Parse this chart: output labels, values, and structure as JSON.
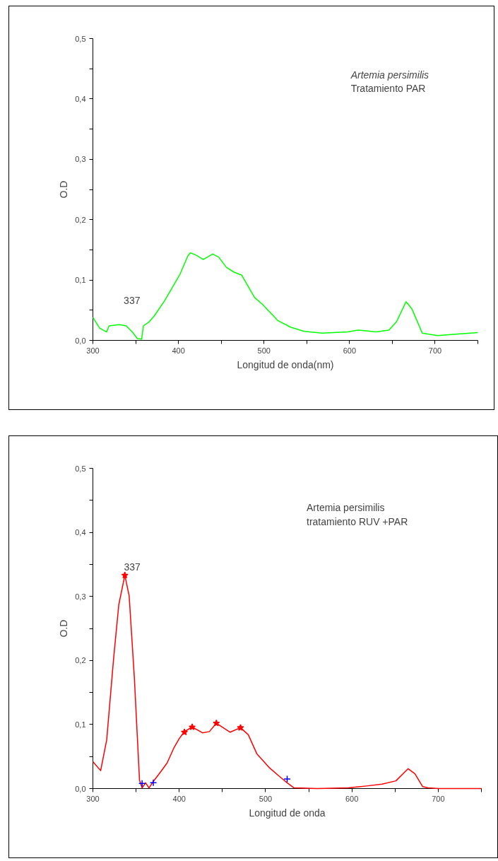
{
  "chart_data": [
    {
      "type": "line",
      "xlabel": "Longitud de onda(nm)",
      "ylabel": "O.D",
      "annotations": [
        "Artemia persimilis",
        "Tratamiento PAR",
        "337"
      ],
      "xlim": [
        300,
        750
      ],
      "ylim": [
        0,
        0.5
      ],
      "xticks": [
        300,
        {
          "value": 350,
          "label": null
        },
        400,
        {
          "value": 450,
          "label": null
        },
        500,
        {
          "value": 550,
          "label": null
        },
        600,
        {
          "value": 650,
          "label": null
        },
        700,
        {
          "value": 750,
          "label": null
        }
      ],
      "yticks": [
        {
          "value": 0,
          "label": "0,0"
        },
        {
          "value": 0.05,
          "label": null
        },
        {
          "value": 0.1,
          "label": "0,1"
        },
        {
          "value": 0.15,
          "label": null
        },
        {
          "value": 0.2,
          "label": "0,2"
        },
        {
          "value": 0.25,
          "label": null
        },
        {
          "value": 0.3,
          "label": "0,3"
        },
        {
          "value": 0.35,
          "label": null
        },
        {
          "value": 0.4,
          "label": "0,4"
        },
        {
          "value": 0.45,
          "label": null
        },
        {
          "value": 0.5,
          "label": "0,5"
        }
      ],
      "grid": false,
      "series": [
        {
          "color": "#00ff00",
          "x": [
            300,
            308,
            316,
            319,
            331,
            339,
            346,
            352,
            357,
            359,
            366,
            372,
            384,
            402,
            411,
            414,
            421,
            429,
            440,
            447,
            456,
            465,
            474,
            489,
            498,
            516,
            531,
            547,
            568,
            598,
            610,
            631,
            646,
            655,
            666,
            673,
            685,
            703,
            721,
            750
          ],
          "values": [
            0.038,
            0.02,
            0.014,
            0.024,
            0.026,
            0.024,
            0.014,
            0.003,
            0.002,
            0.024,
            0.031,
            0.041,
            0.066,
            0.11,
            0.14,
            0.145,
            0.141,
            0.134,
            0.143,
            0.138,
            0.121,
            0.113,
            0.108,
            0.071,
            0.06,
            0.033,
            0.022,
            0.015,
            0.012,
            0.014,
            0.017,
            0.014,
            0.017,
            0.031,
            0.064,
            0.052,
            0.012,
            0.008,
            0.01,
            0.013
          ]
        }
      ]
    },
    {
      "type": "line",
      "xlabel": "Longitud de onda",
      "ylabel": "O.D",
      "annotations": [
        "Artemia persimilis",
        "tratamiento RUV +PAR",
        "337"
      ],
      "xlim": [
        300,
        750
      ],
      "ylim": [
        0,
        0.5
      ],
      "xticks": [
        300,
        {
          "value": 350,
          "label": null
        },
        400,
        {
          "value": 450,
          "label": null
        },
        500,
        {
          "value": 550,
          "label": null
        },
        600,
        {
          "value": 650,
          "label": null
        },
        700,
        {
          "value": 750,
          "label": null
        }
      ],
      "yticks": [
        {
          "value": 0,
          "label": "0,0"
        },
        {
          "value": 0.05,
          "label": null
        },
        {
          "value": 0.1,
          "label": "0,1"
        },
        {
          "value": 0.15,
          "label": null
        },
        {
          "value": 0.2,
          "label": "0,2"
        },
        {
          "value": 0.25,
          "label": null
        },
        {
          "value": 0.3,
          "label": "0,3"
        },
        {
          "value": 0.35,
          "label": null
        },
        {
          "value": 0.4,
          "label": "0,4"
        },
        {
          "value": 0.45,
          "label": null
        },
        {
          "value": 0.5,
          "label": "0,5"
        }
      ],
      "grid": false,
      "series": [
        {
          "color": "#ff0000",
          "x": [
            300,
            309,
            316,
            324,
            330,
            337,
            342,
            348,
            354,
            357,
            361,
            365,
            370,
            379,
            386,
            394,
            400,
            406,
            415,
            427,
            435,
            443,
            459,
            471,
            480,
            490,
            504,
            516,
            525,
            533,
            560,
            596,
            617,
            635,
            651,
            665,
            673,
            682,
            688,
            700,
            750
          ],
          "values": [
            0.042,
            0.028,
            0.076,
            0.203,
            0.287,
            0.333,
            0.301,
            0.174,
            0.013,
            0.001,
            0.009,
            0.001,
            0.011,
            0.027,
            0.04,
            0.064,
            0.078,
            0.089,
            0.096,
            0.087,
            0.089,
            0.102,
            0.088,
            0.095,
            0.084,
            0.054,
            0.033,
            0.019,
            0.009,
            0.001,
            0,
            0.001,
            0.004,
            0.007,
            0.012,
            0.031,
            0.023,
            0.003,
            0.001,
            0,
            0
          ]
        },
        {
          "type": "scatter",
          "marker": "star",
          "color": "#ff0000",
          "x": [
            337,
            406,
            415,
            443,
            471
          ],
          "values": [
            0.333,
            0.088,
            0.096,
            0.102,
            0.095
          ]
        },
        {
          "type": "scatter",
          "marker": "cross",
          "color": "#0000ff",
          "x": [
            357,
            370,
            525
          ],
          "values": [
            0.008,
            0.009,
            0.015
          ]
        }
      ]
    }
  ]
}
